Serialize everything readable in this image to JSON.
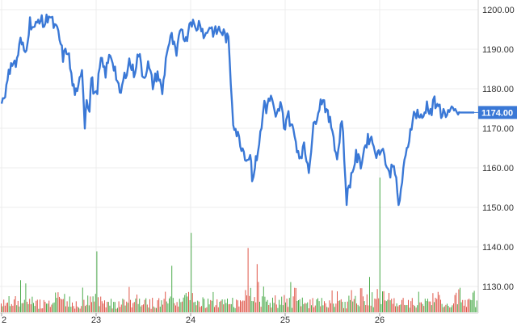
{
  "chart_data": {
    "type": "line",
    "title": "",
    "xlabel": "",
    "ylabel": "",
    "x_ticks": [
      {
        "label": "2",
        "t": 0.0
      },
      {
        "label": "23",
        "t": 1.0
      },
      {
        "label": "24",
        "t": 2.0
      },
      {
        "label": "25",
        "t": 3.0
      },
      {
        "label": "26",
        "t": 4.0
      }
    ],
    "y_ticks": [
      1130,
      1140,
      1150,
      1160,
      1170,
      1180,
      1190,
      1200
    ],
    "y_tick_labels": [
      "1130.00",
      "1140.00",
      "1150.00",
      "1160.00",
      "1170.00",
      "1180.00",
      "1190.00",
      "1200.00"
    ],
    "xlim": [
      0.0,
      5.0
    ],
    "ylim": [
      1122.5,
      1202.5
    ],
    "grid": true,
    "current_price": 1174.0,
    "current_price_label": "1174.00",
    "series": [
      {
        "kind": "price",
        "color": "#3a78d6",
        "x": [
          0.0,
          0.05,
          0.1,
          0.15,
          0.2,
          0.25,
          0.3,
          0.35,
          0.4,
          0.45,
          0.5,
          0.55,
          0.6,
          0.65,
          0.7,
          0.75,
          0.8,
          0.85,
          0.88,
          0.9,
          0.93,
          0.95,
          0.97,
          1.0,
          1.05,
          1.1,
          1.15,
          1.2,
          1.25,
          1.3,
          1.35,
          1.4,
          1.45,
          1.5,
          1.55,
          1.6,
          1.65,
          1.7,
          1.75,
          1.8,
          1.85,
          1.9,
          1.95,
          2.0,
          2.05,
          2.1,
          2.15,
          2.2,
          2.25,
          2.3,
          2.35,
          2.4,
          2.45,
          2.5,
          2.55,
          2.6,
          2.63,
          2.65,
          2.68,
          2.7,
          2.75,
          2.78,
          2.8,
          2.85,
          2.9,
          2.95,
          3.0,
          3.02,
          3.05,
          3.1,
          3.15,
          3.2,
          3.25,
          3.3,
          3.35,
          3.4,
          3.45,
          3.5,
          3.55,
          3.6,
          3.65,
          3.7,
          3.75,
          3.8,
          3.85,
          3.9,
          3.95,
          3.98,
          4.0,
          4.02,
          4.05,
          4.1,
          4.15,
          4.2,
          4.25,
          4.3,
          4.35,
          4.4,
          4.45,
          4.5,
          4.55,
          4.58,
          4.6,
          4.62,
          4.65,
          4.7,
          4.75,
          4.8,
          4.83,
          4.85,
          4.88,
          4.9,
          4.95,
          5.0
        ],
        "values": [
          1177,
          1180,
          1187,
          1186,
          1192,
          1189,
          1197,
          1195,
          1198,
          1196,
          1199,
          1196,
          1194,
          1188,
          1190,
          1181,
          1178,
          1186,
          1171,
          1178,
          1175,
          1183,
          1180,
          1178,
          1187,
          1184,
          1189,
          1185,
          1178,
          1183,
          1187,
          1184,
          1189,
          1183,
          1186,
          1181,
          1184,
          1179,
          1190,
          1193,
          1188,
          1196,
          1192,
          1198,
          1195,
          1197,
          1193,
          1196,
          1194,
          1195,
          1194,
          1192,
          1172,
          1168,
          1165,
          1162,
          1164,
          1158,
          1160,
          1163,
          1170,
          1177,
          1175,
          1178,
          1172,
          1176,
          1170,
          1174,
          1172,
          1168,
          1163,
          1165,
          1160,
          1170,
          1175,
          1178,
          1173,
          1170,
          1162,
          1173,
          1152,
          1158,
          1163,
          1161,
          1166,
          1168,
          1165,
          1163,
          1164,
          1166,
          1163,
          1158,
          1162,
          1150,
          1159,
          1166,
          1173,
          1174,
          1172,
          1176,
          1174,
          1178,
          1174,
          1176,
          1174,
          1174,
          1174,
          1174,
          1174,
          1174,
          1174,
          1174,
          1174,
          1174
        ]
      },
      {
        "kind": "volume",
        "up_color": "#2e9e2e",
        "down_color": "#d93a2b",
        "spikes": [
          {
            "x": 0.2,
            "v": 0.5,
            "dir": "up"
          },
          {
            "x": 0.6,
            "v": 0.35,
            "dir": "down"
          },
          {
            "x": 1.0,
            "v": 1.0,
            "dir": "up"
          },
          {
            "x": 1.35,
            "v": 0.45,
            "dir": "down"
          },
          {
            "x": 1.8,
            "v": 0.75,
            "dir": "up"
          },
          {
            "x": 2.0,
            "v": 1.1,
            "dir": "up"
          },
          {
            "x": 2.6,
            "v": 1.05,
            "dir": "down"
          },
          {
            "x": 2.7,
            "v": 0.6,
            "dir": "down"
          },
          {
            "x": 3.05,
            "v": 0.55,
            "dir": "up"
          },
          {
            "x": 3.8,
            "v": 0.6,
            "dir": "down"
          },
          {
            "x": 4.0,
            "v": 1.9,
            "dir": "up"
          },
          {
            "x": 4.62,
            "v": 0.45,
            "dir": "down"
          },
          {
            "x": 4.99,
            "v": 0.5,
            "dir": "up"
          }
        ]
      }
    ]
  }
}
